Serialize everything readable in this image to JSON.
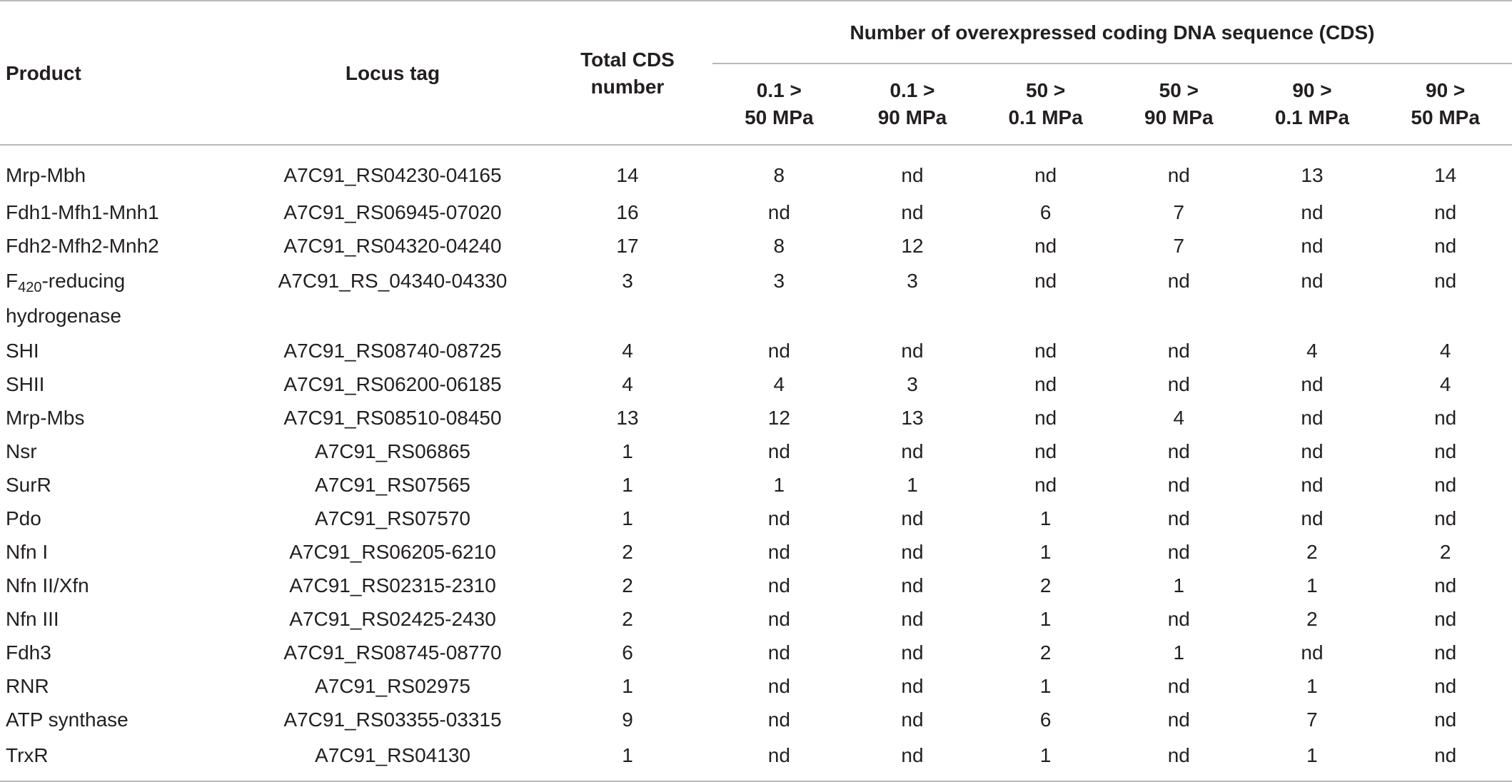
{
  "table": {
    "group_header": "Number of overexpressed coding DNA sequence (CDS)",
    "headers": {
      "product": "Product",
      "locus_tag": "Locus tag",
      "total_cds_line1": "Total CDS",
      "total_cds_line2": "number",
      "conditions": [
        {
          "line1": "0.1 >",
          "line2": "50 MPa"
        },
        {
          "line1": "0.1 >",
          "line2": "90 MPa"
        },
        {
          "line1": "50 >",
          "line2": "0.1 MPa"
        },
        {
          "line1": "50 >",
          "line2": "90 MPa"
        },
        {
          "line1": "90 >",
          "line2": "0.1 MPa"
        },
        {
          "line1": "90 >",
          "line2": "50 MPa"
        }
      ]
    },
    "rows": [
      {
        "product": "Mrp-Mbh",
        "locus": "A7C91_RS04230-04165",
        "total": "14",
        "v": [
          "8",
          "nd",
          "nd",
          "nd",
          "13",
          "14"
        ]
      },
      {
        "product": "Fdh1-Mfh1-Mnh1",
        "locus": "A7C91_RS06945-07020",
        "total": "16",
        "v": [
          "nd",
          "nd",
          "6",
          "7",
          "nd",
          "nd"
        ]
      },
      {
        "product": "Fdh2-Mfh2-Mnh2",
        "locus": "A7C91_RS04320-04240",
        "total": "17",
        "v": [
          "8",
          "12",
          "nd",
          "7",
          "nd",
          "nd"
        ]
      },
      {
        "product_prefix": "F",
        "product_sub": "420",
        "product_suffix": "-reducing",
        "product_line2": "hydrogenase",
        "locus": "A7C91_RS_04340-04330",
        "total": "3",
        "v": [
          "3",
          "3",
          "nd",
          "nd",
          "nd",
          "nd"
        ]
      },
      {
        "product": "SHI",
        "locus": "A7C91_RS08740-08725",
        "total": "4",
        "v": [
          "nd",
          "nd",
          "nd",
          "nd",
          "4",
          "4"
        ]
      },
      {
        "product": "SHII",
        "locus": "A7C91_RS06200-06185",
        "total": "4",
        "v": [
          "4",
          "3",
          "nd",
          "nd",
          "nd",
          "4"
        ]
      },
      {
        "product": "Mrp-Mbs",
        "locus": "A7C91_RS08510-08450",
        "total": "13",
        "v": [
          "12",
          "13",
          "nd",
          "4",
          "nd",
          "nd"
        ]
      },
      {
        "product": "Nsr",
        "locus": "A7C91_RS06865",
        "total": "1",
        "v": [
          "nd",
          "nd",
          "nd",
          "nd",
          "nd",
          "nd"
        ]
      },
      {
        "product": "SurR",
        "locus": "A7C91_RS07565",
        "total": "1",
        "v": [
          "1",
          "1",
          "nd",
          "nd",
          "nd",
          "nd"
        ]
      },
      {
        "product": "Pdo",
        "locus": "A7C91_RS07570",
        "total": "1",
        "v": [
          "nd",
          "nd",
          "1",
          "nd",
          "nd",
          "nd"
        ]
      },
      {
        "product": "Nfn I",
        "locus": "A7C91_RS06205-6210",
        "total": "2",
        "v": [
          "nd",
          "nd",
          "1",
          "nd",
          "2",
          "2"
        ]
      },
      {
        "product": "Nfn II/Xfn",
        "locus": "A7C91_RS02315-2310",
        "total": "2",
        "v": [
          "nd",
          "nd",
          "2",
          "1",
          "1",
          "nd"
        ]
      },
      {
        "product": "Nfn III",
        "locus": "A7C91_RS02425-2430",
        "total": "2",
        "v": [
          "nd",
          "nd",
          "1",
          "nd",
          "2",
          "nd"
        ]
      },
      {
        "product": "Fdh3",
        "locus": "A7C91_RS08745-08770",
        "total": "6",
        "v": [
          "nd",
          "nd",
          "2",
          "1",
          "nd",
          "nd"
        ]
      },
      {
        "product": "RNR",
        "locus": "A7C91_RS02975",
        "total": "1",
        "v": [
          "nd",
          "nd",
          "1",
          "nd",
          "1",
          "nd"
        ]
      },
      {
        "product": "ATP synthase",
        "locus": "A7C91_RS03355-03315",
        "total": "9",
        "v": [
          "nd",
          "nd",
          "6",
          "nd",
          "7",
          "nd"
        ]
      },
      {
        "product": "TrxR",
        "locus": "A7C91_RS04130",
        "total": "1",
        "v": [
          "nd",
          "nd",
          "1",
          "nd",
          "1",
          "nd"
        ]
      }
    ]
  }
}
